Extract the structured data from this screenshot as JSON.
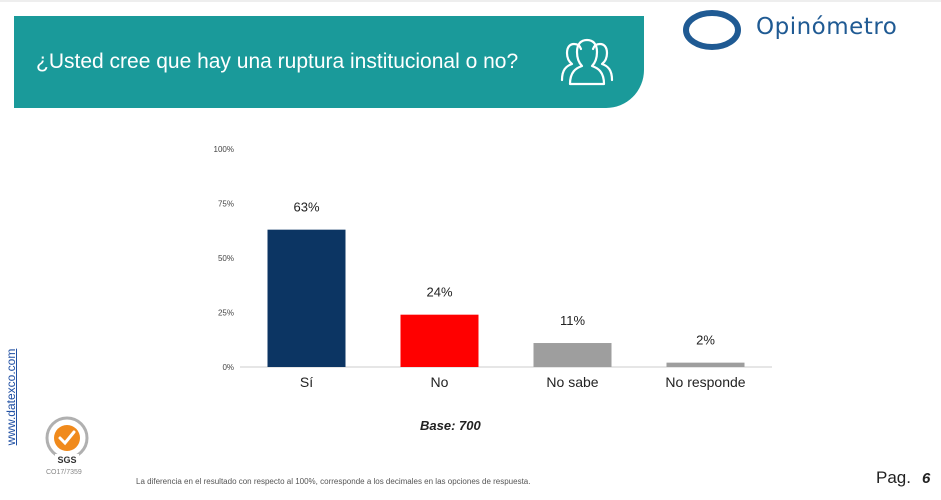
{
  "header": {
    "question": "¿Usted cree que hay una ruptura institucional o no?",
    "icon": "people-group-icon"
  },
  "brand": {
    "name": "Opinómetro",
    "logo_icon": "opinometro-o-logo",
    "color": "#1f5a93"
  },
  "colors": {
    "banner": "#1a9a9a",
    "si": "#0c3563",
    "no": "#ff0000",
    "gray": "#9e9e9e"
  },
  "chart_data": {
    "type": "bar",
    "categories": [
      "Sí",
      "No",
      "No sabe",
      "No responde"
    ],
    "values": [
      63,
      24,
      11,
      2
    ],
    "value_labels": [
      "63%",
      "24%",
      "11%",
      "2%"
    ],
    "bar_colors": [
      "#0c3563",
      "#ff0000",
      "#9e9e9e",
      "#9e9e9e"
    ],
    "ylim": [
      0,
      100
    ],
    "yticks": [
      0,
      25,
      50,
      75,
      100
    ],
    "ytick_labels": [
      "0%",
      "25%",
      "50%",
      "75%",
      "100%"
    ],
    "title": "",
    "xlabel": "",
    "ylabel": "",
    "grid": false,
    "legend": "none"
  },
  "base_label": "Base: 700",
  "side_link": "www.datexco.com",
  "seal": {
    "icon": "sgs-certification-seal",
    "mark_text": "SGS",
    "code": "CO17/7359"
  },
  "footnote": "La diferencia en el resultado con respecto al 100%, corresponde a los decimales en las opciones de respuesta.",
  "page": {
    "label": "Pag.",
    "number": "6"
  }
}
